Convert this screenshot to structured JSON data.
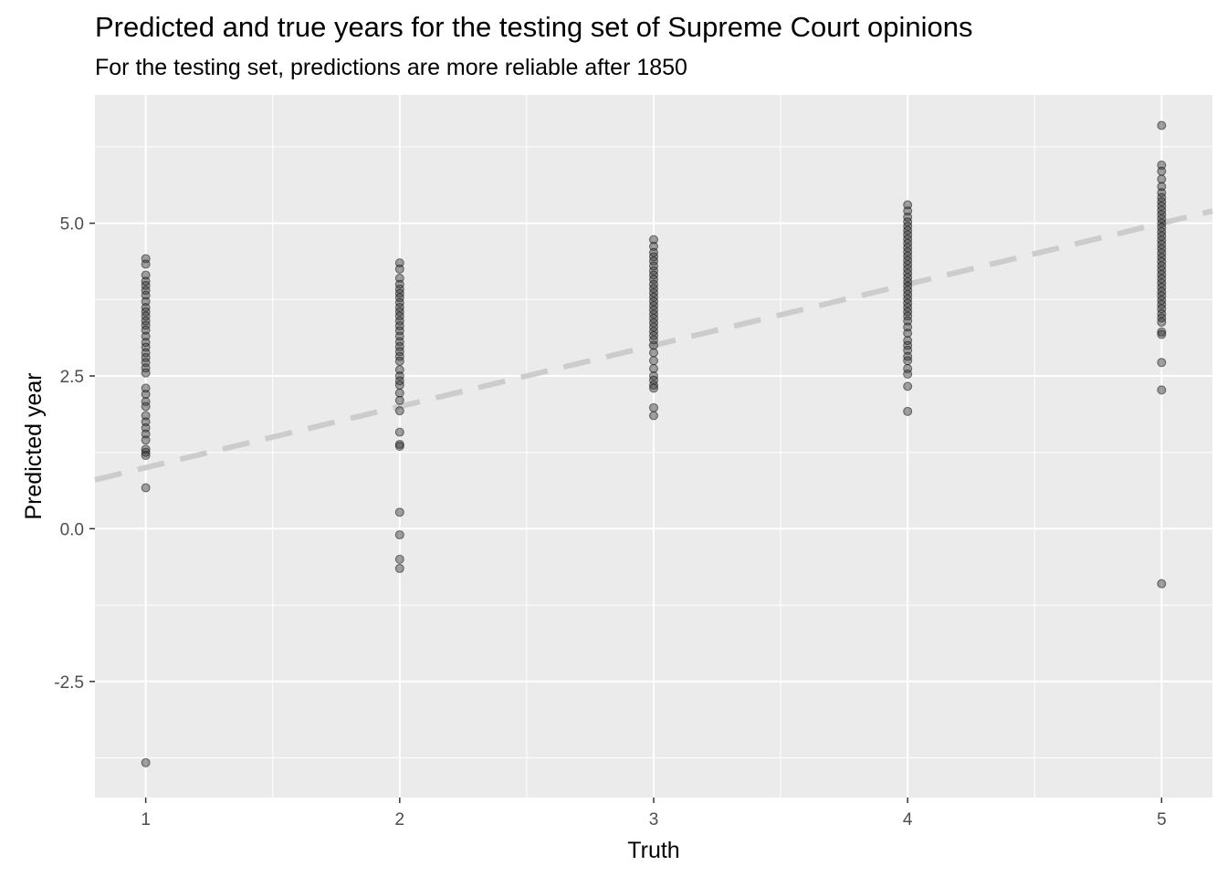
{
  "title": "Predicted and true years for the testing set of Supreme Court opinions",
  "subtitle": "For the testing set, predictions are more reliable after 1850",
  "chart_data": {
    "type": "scatter",
    "xlabel": "Truth",
    "ylabel": "Predicted year",
    "xlim": [
      0.8,
      5.2
    ],
    "ylim": [
      -4.4,
      7.1
    ],
    "x_ticks": [
      1,
      2,
      3,
      4,
      5
    ],
    "x_tick_labels": [
      "1",
      "2",
      "3",
      "4",
      "5"
    ],
    "y_ticks": [
      -2.5,
      0.0,
      2.5,
      5.0
    ],
    "y_tick_labels": [
      "-2.5",
      "0.0",
      "2.5",
      "5.0"
    ],
    "grid": true,
    "panel_background": "#ebebeb",
    "grid_color": "#ffffff",
    "point_color": "#333333",
    "point_alpha": 0.45,
    "reference_line": {
      "slope": 1,
      "intercept": 0,
      "style": "dashed",
      "color": "#cccccc"
    },
    "points": [
      {
        "x": 1,
        "y": 4.42
      },
      {
        "x": 1,
        "y": 4.33
      },
      {
        "x": 1,
        "y": 4.15
      },
      {
        "x": 1,
        "y": 4.05
      },
      {
        "x": 1,
        "y": 3.98
      },
      {
        "x": 1,
        "y": 3.9
      },
      {
        "x": 1,
        "y": 3.82
      },
      {
        "x": 1,
        "y": 3.72
      },
      {
        "x": 1,
        "y": 3.62
      },
      {
        "x": 1,
        "y": 3.55
      },
      {
        "x": 1,
        "y": 3.48
      },
      {
        "x": 1,
        "y": 3.4
      },
      {
        "x": 1,
        "y": 3.33
      },
      {
        "x": 1,
        "y": 3.25
      },
      {
        "x": 1,
        "y": 3.15
      },
      {
        "x": 1,
        "y": 3.05
      },
      {
        "x": 1,
        "y": 2.97
      },
      {
        "x": 1,
        "y": 2.88
      },
      {
        "x": 1,
        "y": 2.8
      },
      {
        "x": 1,
        "y": 2.72
      },
      {
        "x": 1,
        "y": 2.63
      },
      {
        "x": 1,
        "y": 2.55
      },
      {
        "x": 1,
        "y": 2.3
      },
      {
        "x": 1,
        "y": 2.2
      },
      {
        "x": 1,
        "y": 2.08
      },
      {
        "x": 1,
        "y": 2.0
      },
      {
        "x": 1,
        "y": 1.85
      },
      {
        "x": 1,
        "y": 1.75
      },
      {
        "x": 1,
        "y": 1.65
      },
      {
        "x": 1,
        "y": 1.55
      },
      {
        "x": 1,
        "y": 1.45
      },
      {
        "x": 1,
        "y": 1.3
      },
      {
        "x": 1,
        "y": 1.25
      },
      {
        "x": 1,
        "y": 1.2
      },
      {
        "x": 1,
        "y": 0.67
      },
      {
        "x": 1,
        "y": -3.83
      },
      {
        "x": 2,
        "y": 4.35
      },
      {
        "x": 2,
        "y": 4.25
      },
      {
        "x": 2,
        "y": 4.1
      },
      {
        "x": 2,
        "y": 4.0
      },
      {
        "x": 2,
        "y": 3.92
      },
      {
        "x": 2,
        "y": 3.85
      },
      {
        "x": 2,
        "y": 3.78
      },
      {
        "x": 2,
        "y": 3.7
      },
      {
        "x": 2,
        "y": 3.62
      },
      {
        "x": 2,
        "y": 3.55
      },
      {
        "x": 2,
        "y": 3.48
      },
      {
        "x": 2,
        "y": 3.4
      },
      {
        "x": 2,
        "y": 3.32
      },
      {
        "x": 2,
        "y": 3.24
      },
      {
        "x": 2,
        "y": 3.15
      },
      {
        "x": 2,
        "y": 3.06
      },
      {
        "x": 2,
        "y": 2.98
      },
      {
        "x": 2,
        "y": 2.9
      },
      {
        "x": 2,
        "y": 2.82
      },
      {
        "x": 2,
        "y": 2.74
      },
      {
        "x": 2,
        "y": 2.6
      },
      {
        "x": 2,
        "y": 2.5
      },
      {
        "x": 2,
        "y": 2.42
      },
      {
        "x": 2,
        "y": 2.35
      },
      {
        "x": 2,
        "y": 2.22
      },
      {
        "x": 2,
        "y": 2.1
      },
      {
        "x": 2,
        "y": 1.93
      },
      {
        "x": 2,
        "y": 1.58
      },
      {
        "x": 2,
        "y": 1.38
      },
      {
        "x": 2,
        "y": 1.35
      },
      {
        "x": 2,
        "y": 0.27
      },
      {
        "x": 2,
        "y": -0.1
      },
      {
        "x": 2,
        "y": -0.5
      },
      {
        "x": 2,
        "y": -0.65
      },
      {
        "x": 3,
        "y": 4.73
      },
      {
        "x": 3,
        "y": 4.62
      },
      {
        "x": 3,
        "y": 4.52
      },
      {
        "x": 3,
        "y": 4.45
      },
      {
        "x": 3,
        "y": 4.38
      },
      {
        "x": 3,
        "y": 4.3
      },
      {
        "x": 3,
        "y": 4.22
      },
      {
        "x": 3,
        "y": 4.15
      },
      {
        "x": 3,
        "y": 4.08
      },
      {
        "x": 3,
        "y": 4.0
      },
      {
        "x": 3,
        "y": 3.93
      },
      {
        "x": 3,
        "y": 3.86
      },
      {
        "x": 3,
        "y": 3.79
      },
      {
        "x": 3,
        "y": 3.72
      },
      {
        "x": 3,
        "y": 3.65
      },
      {
        "x": 3,
        "y": 3.58
      },
      {
        "x": 3,
        "y": 3.51
      },
      {
        "x": 3,
        "y": 3.44
      },
      {
        "x": 3,
        "y": 3.37
      },
      {
        "x": 3,
        "y": 3.3
      },
      {
        "x": 3,
        "y": 3.23
      },
      {
        "x": 3,
        "y": 3.16
      },
      {
        "x": 3,
        "y": 3.09
      },
      {
        "x": 3,
        "y": 3.0
      },
      {
        "x": 3,
        "y": 2.88
      },
      {
        "x": 3,
        "y": 2.75
      },
      {
        "x": 3,
        "y": 2.62
      },
      {
        "x": 3,
        "y": 2.5
      },
      {
        "x": 3,
        "y": 2.43
      },
      {
        "x": 3,
        "y": 2.35
      },
      {
        "x": 3,
        "y": 2.3
      },
      {
        "x": 3,
        "y": 1.98
      },
      {
        "x": 3,
        "y": 1.85
      },
      {
        "x": 4,
        "y": 5.3
      },
      {
        "x": 4,
        "y": 5.2
      },
      {
        "x": 4,
        "y": 5.1
      },
      {
        "x": 4,
        "y": 5.02
      },
      {
        "x": 4,
        "y": 4.95
      },
      {
        "x": 4,
        "y": 4.88
      },
      {
        "x": 4,
        "y": 4.81
      },
      {
        "x": 4,
        "y": 4.74
      },
      {
        "x": 4,
        "y": 4.67
      },
      {
        "x": 4,
        "y": 4.6
      },
      {
        "x": 4,
        "y": 4.53
      },
      {
        "x": 4,
        "y": 4.46
      },
      {
        "x": 4,
        "y": 4.39
      },
      {
        "x": 4,
        "y": 4.32
      },
      {
        "x": 4,
        "y": 4.25
      },
      {
        "x": 4,
        "y": 4.18
      },
      {
        "x": 4,
        "y": 4.11
      },
      {
        "x": 4,
        "y": 4.04
      },
      {
        "x": 4,
        "y": 3.97
      },
      {
        "x": 4,
        "y": 3.9
      },
      {
        "x": 4,
        "y": 3.83
      },
      {
        "x": 4,
        "y": 3.76
      },
      {
        "x": 4,
        "y": 3.69
      },
      {
        "x": 4,
        "y": 3.62
      },
      {
        "x": 4,
        "y": 3.55
      },
      {
        "x": 4,
        "y": 3.48
      },
      {
        "x": 4,
        "y": 3.4
      },
      {
        "x": 4,
        "y": 3.3
      },
      {
        "x": 4,
        "y": 3.2
      },
      {
        "x": 4,
        "y": 3.08
      },
      {
        "x": 4,
        "y": 3.0
      },
      {
        "x": 4,
        "y": 2.92
      },
      {
        "x": 4,
        "y": 2.82
      },
      {
        "x": 4,
        "y": 2.75
      },
      {
        "x": 4,
        "y": 2.62
      },
      {
        "x": 4,
        "y": 2.53
      },
      {
        "x": 4,
        "y": 2.33
      },
      {
        "x": 4,
        "y": 1.92
      },
      {
        "x": 5,
        "y": 6.6
      },
      {
        "x": 5,
        "y": 5.95
      },
      {
        "x": 5,
        "y": 5.85
      },
      {
        "x": 5,
        "y": 5.72
      },
      {
        "x": 5,
        "y": 5.6
      },
      {
        "x": 5,
        "y": 5.5
      },
      {
        "x": 5,
        "y": 5.42
      },
      {
        "x": 5,
        "y": 5.35
      },
      {
        "x": 5,
        "y": 5.28
      },
      {
        "x": 5,
        "y": 5.21
      },
      {
        "x": 5,
        "y": 5.14
      },
      {
        "x": 5,
        "y": 5.07
      },
      {
        "x": 5,
        "y": 5.0
      },
      {
        "x": 5,
        "y": 4.93
      },
      {
        "x": 5,
        "y": 4.86
      },
      {
        "x": 5,
        "y": 4.79
      },
      {
        "x": 5,
        "y": 4.72
      },
      {
        "x": 5,
        "y": 4.65
      },
      {
        "x": 5,
        "y": 4.58
      },
      {
        "x": 5,
        "y": 4.51
      },
      {
        "x": 5,
        "y": 4.44
      },
      {
        "x": 5,
        "y": 4.37
      },
      {
        "x": 5,
        "y": 4.3
      },
      {
        "x": 5,
        "y": 4.23
      },
      {
        "x": 5,
        "y": 4.16
      },
      {
        "x": 5,
        "y": 4.09
      },
      {
        "x": 5,
        "y": 4.02
      },
      {
        "x": 5,
        "y": 3.95
      },
      {
        "x": 5,
        "y": 3.88
      },
      {
        "x": 5,
        "y": 3.81
      },
      {
        "x": 5,
        "y": 3.74
      },
      {
        "x": 5,
        "y": 3.67
      },
      {
        "x": 5,
        "y": 3.6
      },
      {
        "x": 5,
        "y": 3.52
      },
      {
        "x": 5,
        "y": 3.45
      },
      {
        "x": 5,
        "y": 3.38
      },
      {
        "x": 5,
        "y": 3.22
      },
      {
        "x": 5,
        "y": 3.18
      },
      {
        "x": 5,
        "y": 2.72
      },
      {
        "x": 5,
        "y": 2.27
      },
      {
        "x": 5,
        "y": -0.9
      }
    ]
  }
}
